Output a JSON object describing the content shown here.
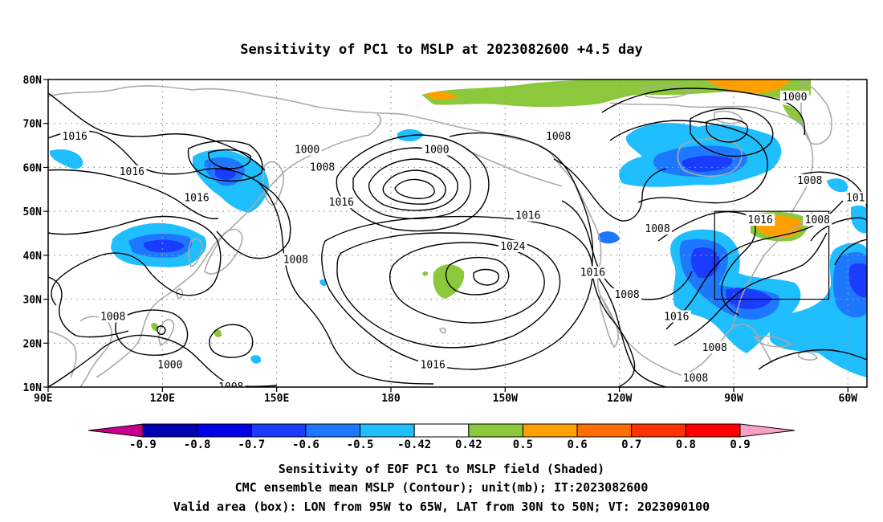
{
  "title": "Sensitivity of PC1 to MSLP at 2023082600 +4.5 day",
  "map": {
    "lon_range": [
      90,
      305
    ],
    "lat_range": [
      10,
      80
    ],
    "lat_ticks": [
      {
        "lat": 80,
        "label": "80N"
      },
      {
        "lat": 70,
        "label": "70N"
      },
      {
        "lat": 60,
        "label": "60N"
      },
      {
        "lat": 50,
        "label": "50N"
      },
      {
        "lat": 40,
        "label": "40N"
      },
      {
        "lat": 30,
        "label": "30N"
      },
      {
        "lat": 20,
        "label": "20N"
      },
      {
        "lat": 10,
        "label": "10N"
      }
    ],
    "lon_ticks": [
      {
        "lon": 90,
        "label": "90E"
      },
      {
        "lon": 120,
        "label": "120E"
      },
      {
        "lon": 150,
        "label": "150E"
      },
      {
        "lon": 180,
        "label": "180"
      },
      {
        "lon": 210,
        "label": "150W"
      },
      {
        "lon": 240,
        "label": "120W"
      },
      {
        "lon": 270,
        "label": "90W"
      },
      {
        "lon": 300,
        "label": "60W"
      }
    ],
    "valid_box": {
      "lon": [
        265,
        295
      ],
      "lat": [
        30,
        50
      ]
    },
    "contour_labels": [
      {
        "lon": 97,
        "lat": 67,
        "text": "1016"
      },
      {
        "lon": 112,
        "lat": 59,
        "text": "1016"
      },
      {
        "lon": 129,
        "lat": 53,
        "text": "1016"
      },
      {
        "lon": 158,
        "lat": 64,
        "text": "1000"
      },
      {
        "lon": 162,
        "lat": 60,
        "text": "1008"
      },
      {
        "lon": 167,
        "lat": 52,
        "text": "1016"
      },
      {
        "lon": 192,
        "lat": 64,
        "text": "1000"
      },
      {
        "lon": 224,
        "lat": 67,
        "text": "1008"
      },
      {
        "lon": 216,
        "lat": 49,
        "text": "1016"
      },
      {
        "lon": 212,
        "lat": 42,
        "text": "1024"
      },
      {
        "lon": 233,
        "lat": 36,
        "text": "1016"
      },
      {
        "lon": 242,
        "lat": 31,
        "text": "1008"
      },
      {
        "lon": 255,
        "lat": 26,
        "text": "1016"
      },
      {
        "lon": 191,
        "lat": 15,
        "text": "1016"
      },
      {
        "lon": 260,
        "lat": 12,
        "text": "1008"
      },
      {
        "lon": 250,
        "lat": 46,
        "text": "1008"
      },
      {
        "lon": 265,
        "lat": 19,
        "text": "1008"
      },
      {
        "lon": 155,
        "lat": 39,
        "text": "1008"
      },
      {
        "lon": 107,
        "lat": 26,
        "text": "1008"
      },
      {
        "lon": 122,
        "lat": 15,
        "text": "1000"
      },
      {
        "lon": 138,
        "lat": 10,
        "text": "1008"
      },
      {
        "lon": 286,
        "lat": 76,
        "text": "1000"
      },
      {
        "lon": 290,
        "lat": 57,
        "text": "1008"
      },
      {
        "lon": 277,
        "lat": 48,
        "text": "1016"
      },
      {
        "lon": 292,
        "lat": 48,
        "text": "1008"
      },
      {
        "lon": 302,
        "lat": 53,
        "text": "101"
      }
    ]
  },
  "colorbar": {
    "labels": [
      "-0.9",
      "-0.8",
      "-0.7",
      "-0.6",
      "-0.5",
      "-0.42",
      "0.42",
      "0.5",
      "0.6",
      "0.7",
      "0.8",
      "0.9"
    ],
    "colors": [
      "#0000b4",
      "#0000e6",
      "#1a3cff",
      "#1e78ff",
      "#1ebeff",
      "#ffffff",
      "#8cc83c",
      "#ffa000",
      "#ff6e00",
      "#ff3200",
      "#ff0000"
    ],
    "low_color": "#c8008c",
    "high_color": "#f8a0c8"
  },
  "caption": {
    "line1": "Sensitivity of EOF PC1 to MSLP field (Shaded)",
    "line2": "CMC ensemble mean MSLP (Contour); unit(mb); IT:2023082600",
    "line3": "Valid area (box): LON from 95W to 65W, LAT from 30N to 50N; VT: 2023090100"
  },
  "colors": {
    "coast": "#aaaaaa",
    "contour": "#000000",
    "grid": "#9a9a9a"
  }
}
